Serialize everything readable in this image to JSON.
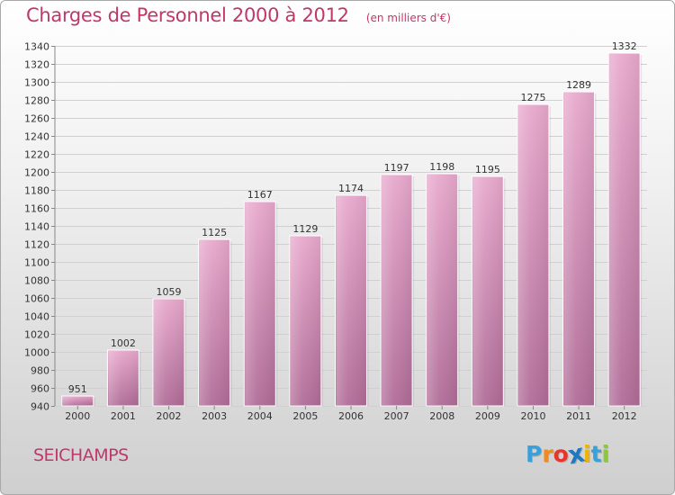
{
  "header": {
    "title": "Charges de Personnel 2000 à 2012",
    "subtitle": "(en milliers d'€)"
  },
  "footer": {
    "city": "SEICHAMPS",
    "logo_letters": [
      "P",
      "r",
      "o",
      "x",
      "i",
      "t",
      "i"
    ],
    "logo_colors": [
      "#3aa0d8",
      "#f08c1e",
      "#e8352b",
      "#1f78c0",
      "#f0b400",
      "#3aa0d8",
      "#8cc83c"
    ]
  },
  "colors": {
    "bar_top": "#e8a9cd",
    "bar_bottom": "#b06c97",
    "accent": "#c0386a"
  },
  "chart_data": {
    "type": "bar",
    "title": "Charges de Personnel 2000 à 2012",
    "subtitle": "(en milliers d'€)",
    "categories": [
      "2000",
      "2001",
      "2002",
      "2003",
      "2004",
      "2005",
      "2006",
      "2007",
      "2008",
      "2009",
      "2010",
      "2011",
      "2012"
    ],
    "values": [
      951,
      1002,
      1059,
      1125,
      1167,
      1129,
      1174,
      1197,
      1198,
      1195,
      1275,
      1289,
      1332
    ],
    "ylim": [
      940,
      1340
    ],
    "ytick_step": 20,
    "grid": true
  }
}
